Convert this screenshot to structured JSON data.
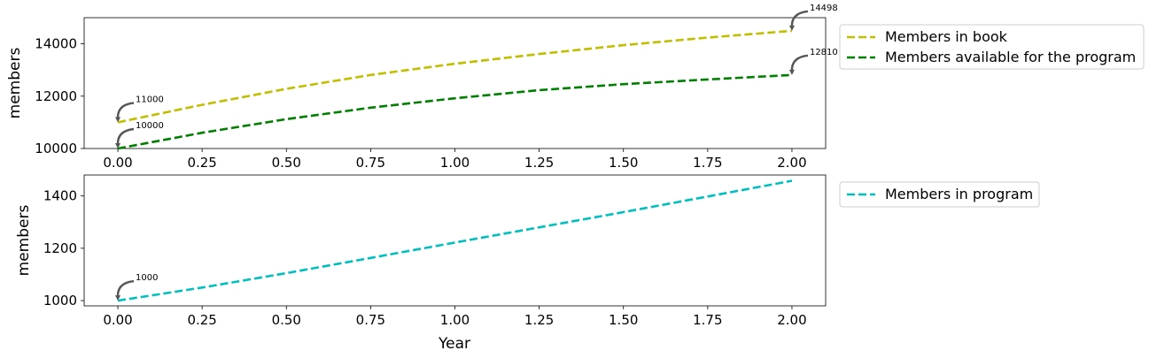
{
  "chart_data": [
    {
      "type": "line",
      "ylabel": "members",
      "xlabel": "",
      "xlim": [
        -0.1,
        2.1
      ],
      "ylim": [
        10000,
        15000
      ],
      "x_ticks": [
        "0.00",
        "0.25",
        "0.50",
        "0.75",
        "1.00",
        "1.25",
        "1.50",
        "1.75",
        "2.00"
      ],
      "y_ticks": [
        "10000",
        "12000",
        "14000"
      ],
      "legend_position": "outside-right-top",
      "grid": false,
      "series": [
        {
          "name": "Members in book",
          "color": "#bfbf00",
          "style": "dashed",
          "x": [
            0,
            0.25,
            0.5,
            0.75,
            1.0,
            1.25,
            1.5,
            1.75,
            2.0
          ],
          "y": [
            11000,
            11670,
            12280,
            12810,
            13240,
            13610,
            13950,
            14240,
            14498
          ]
        },
        {
          "name": "Members available for the program",
          "color": "#008000",
          "style": "dashed",
          "x": [
            0,
            0.25,
            0.5,
            0.75,
            1.0,
            1.25,
            1.5,
            1.75,
            2.0
          ],
          "y": [
            10000,
            10600,
            11120,
            11560,
            11920,
            12230,
            12460,
            12640,
            12810
          ]
        }
      ],
      "annotations": [
        {
          "x": 0,
          "y": 11000,
          "text": "11000"
        },
        {
          "x": 0,
          "y": 10000,
          "text": "10000"
        },
        {
          "x": 2,
          "y": 14498,
          "text": "14498"
        },
        {
          "x": 2,
          "y": 12810,
          "text": "12810"
        }
      ]
    },
    {
      "type": "line",
      "ylabel": "members",
      "xlabel": "Year",
      "xlim": [
        -0.1,
        2.1
      ],
      "ylim": [
        980,
        1480
      ],
      "x_ticks": [
        "0.00",
        "0.25",
        "0.50",
        "0.75",
        "1.00",
        "1.25",
        "1.50",
        "1.75",
        "2.00"
      ],
      "y_ticks": [
        "1000",
        "1200",
        "1400"
      ],
      "legend_position": "outside-right-top",
      "grid": false,
      "series": [
        {
          "name": "Members in program",
          "color": "#00bfbf",
          "style": "dashed",
          "x": [
            0,
            0.25,
            0.5,
            0.75,
            1.0,
            1.25,
            1.5,
            1.75,
            2.0
          ],
          "y": [
            1000,
            1050,
            1105,
            1163,
            1222,
            1280,
            1338,
            1398,
            1458
          ]
        }
      ],
      "annotations": [
        {
          "x": 0,
          "y": 1000,
          "text": "1000"
        }
      ]
    }
  ],
  "colors": {
    "annotation_arrow": "#555555",
    "legend_border": "#cccccc"
  }
}
